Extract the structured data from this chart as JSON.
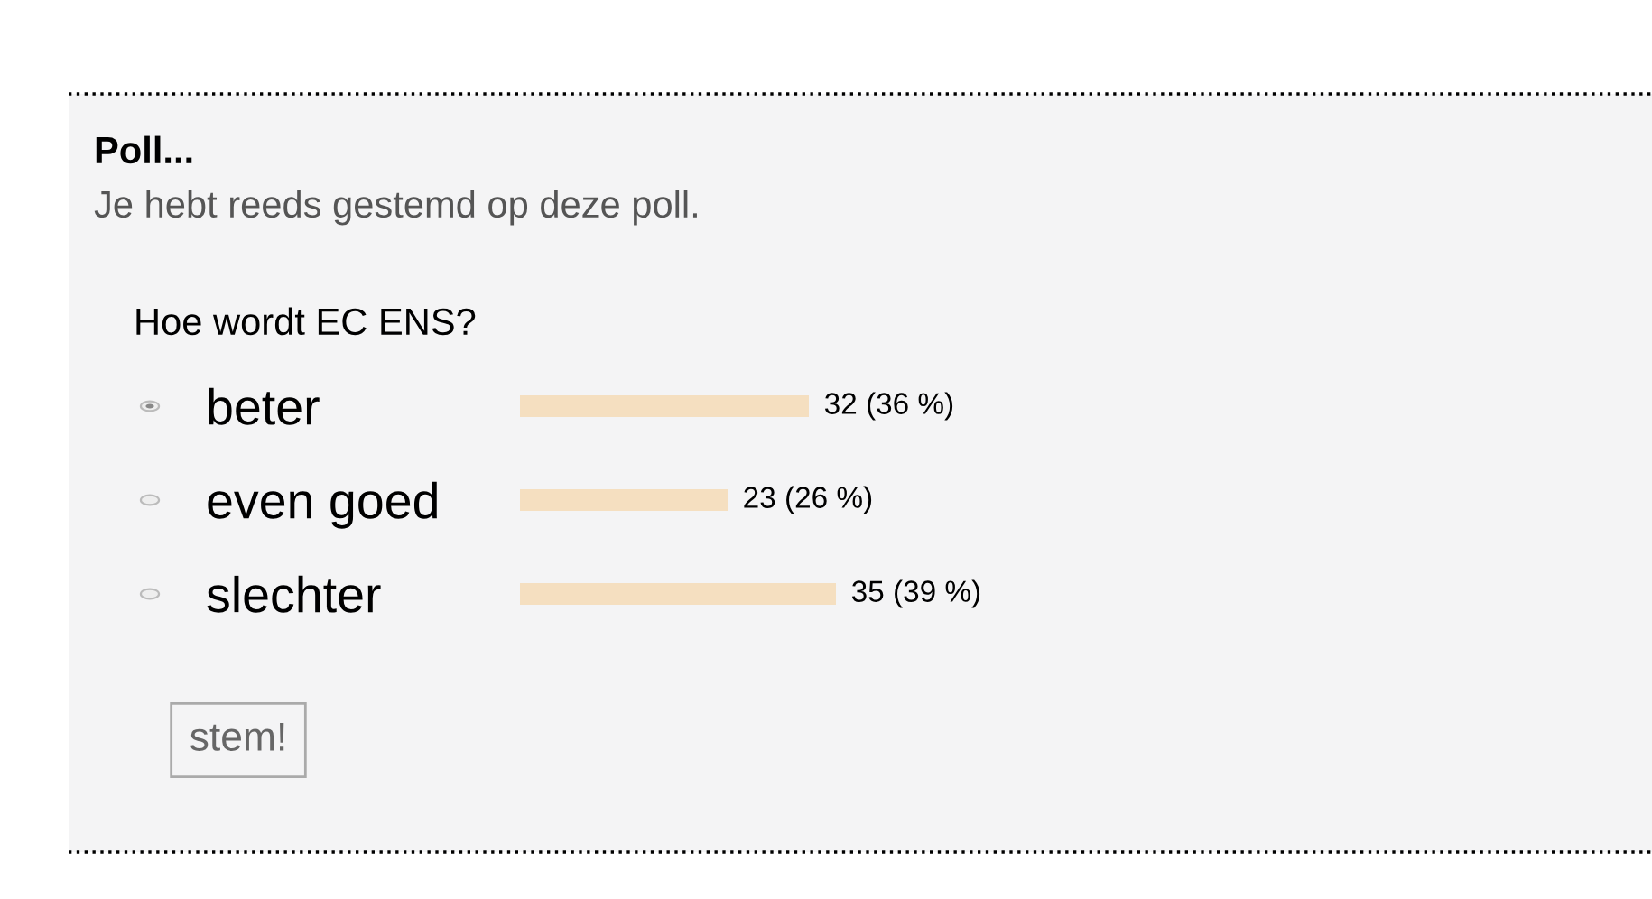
{
  "chart_data": {
    "type": "bar",
    "orientation": "horizontal",
    "title": "Poll...",
    "subtitle": "Je hebt reeds gestemd op deze poll.",
    "annotations": [
      "Hoe wordt EC ENS?",
      "stem!"
    ],
    "categories": [
      "beter",
      "even goed",
      "slechter"
    ],
    "values": [
      32,
      23,
      35
    ],
    "value_labels": [
      "32 (36 %)",
      "23 (26 %)",
      "35 (39 %)"
    ],
    "color": "#f5dfc0",
    "grid": false,
    "legend": false
  }
}
